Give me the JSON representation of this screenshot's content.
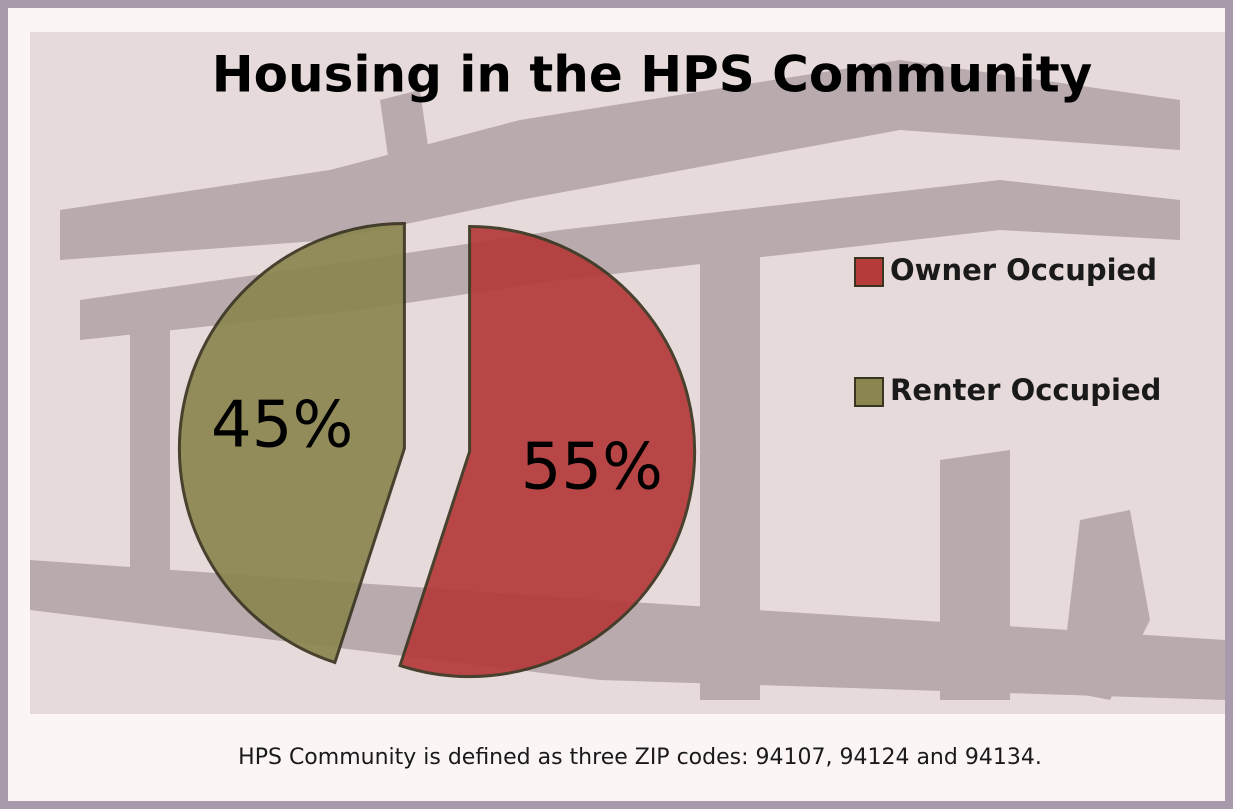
{
  "chart_data": {
    "type": "pie",
    "title": "Housing in the HPS Community",
    "categories": [
      "Owner Occupied",
      "Renter Occupied"
    ],
    "values": [
      55,
      45
    ],
    "value_labels": [
      "55%",
      "45%"
    ],
    "colors": [
      "#b53a3a",
      "#8b8650"
    ],
    "legend": "right",
    "note": "HPS Community is defined as three ZIP codes: 94107, 94124 and 94134."
  }
}
